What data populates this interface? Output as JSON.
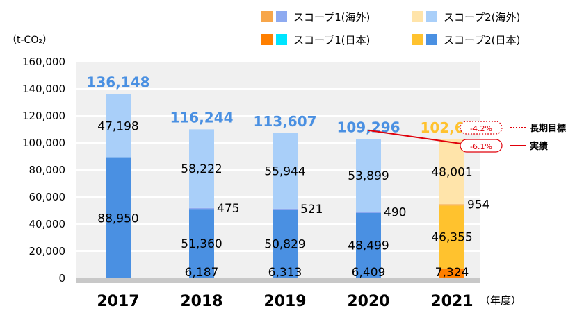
{
  "chart_data": {
    "type": "bar",
    "stacked": true,
    "unit_label": "（t-CO₂）",
    "x_suffix": "（年度）",
    "categories": [
      "2017",
      "2018",
      "2019",
      "2020",
      "2021"
    ],
    "ylim": [
      0,
      160000
    ],
    "yticks": [
      0,
      20000,
      40000,
      60000,
      80000,
      100000,
      120000,
      140000,
      160000
    ],
    "ytick_labels": [
      "0",
      "20,000",
      "40,000",
      "60,000",
      "80,000",
      "100,000",
      "120,000",
      "140,000",
      "160,000"
    ],
    "grid": true,
    "series": [
      {
        "name": "スコープ1(日本)",
        "values": [
          0,
          0,
          0,
          0,
          7324
        ],
        "labels": [
          "",
          "",
          "",
          "",
          "7,324"
        ],
        "colors": [
          "#00e5ff",
          "#00e5ff",
          "#00e5ff",
          "#00e5ff",
          "#ff7f00"
        ]
      },
      {
        "name": "スコープ2(日本)",
        "values": [
          88950,
          51360,
          50829,
          48499,
          46355
        ],
        "labels": [
          "88,950",
          "51,360",
          "50,829",
          "48,499",
          "46,355"
        ],
        "colors": [
          "#4a90e2",
          "#4a90e2",
          "#4a90e2",
          "#4a90e2",
          "#ffc22e"
        ]
      },
      {
        "name": "スコープ1(海外)",
        "values": [
          0,
          475,
          521,
          490,
          954
        ],
        "labels": [
          "",
          "475",
          "521",
          "490",
          "954"
        ],
        "colors": [
          "#8eaaf0",
          "#8eaaf0",
          "#8eaaf0",
          "#8eaaf0",
          "#f7a64a"
        ]
      },
      {
        "name": "スコープ2(海外)",
        "values": [
          47198,
          58222,
          55944,
          53899,
          48001
        ],
        "labels": [
          "47,198",
          "58,222",
          "55,944",
          "53,899",
          "48,001"
        ],
        "colors": [
          "#a9cff9",
          "#a9cff9",
          "#a9cff9",
          "#a9cff9",
          "#ffe4aa"
        ]
      }
    ],
    "overlay_labels": [
      {
        "category": "2018",
        "text": "6,187"
      },
      {
        "category": "2019",
        "text": "6,313"
      },
      {
        "category": "2020",
        "text": "6,409"
      }
    ],
    "totals": [
      {
        "value": "136,148",
        "color": "#4a90e2"
      },
      {
        "value": "116,244",
        "color": "#4a90e2"
      },
      {
        "value": "113,607",
        "color": "#4a90e2"
      },
      {
        "value": "109,296",
        "color": "#4a90e2"
      },
      {
        "value": "102,634",
        "color": "#ffc22e"
      }
    ],
    "legend": [
      {
        "label": "スコープ1(海外)",
        "colors": [
          "#f7a64a",
          "#8eaaf0"
        ]
      },
      {
        "label": "スコープ2(海外)",
        "colors": [
          "#ffe4aa",
          "#a9cff9"
        ]
      },
      {
        "label": "スコープ1(日本)",
        "colors": [
          "#ff7f00",
          "#00e5ff"
        ]
      },
      {
        "label": "スコープ2(日本)",
        "colors": [
          "#ffc22e",
          "#4a90e2"
        ]
      }
    ],
    "annotations": [
      {
        "badge": "-4.2%",
        "label": "長期目標",
        "style": "dotted",
        "color": "#e0000a"
      },
      {
        "badge": "-6.1%",
        "label": "実績",
        "style": "solid",
        "color": "#e0000a"
      }
    ],
    "trend_line": {
      "from_category": "2020",
      "from_value": 109296,
      "to_category": "2021",
      "to_value": 102634,
      "color": "#e0000a"
    }
  }
}
